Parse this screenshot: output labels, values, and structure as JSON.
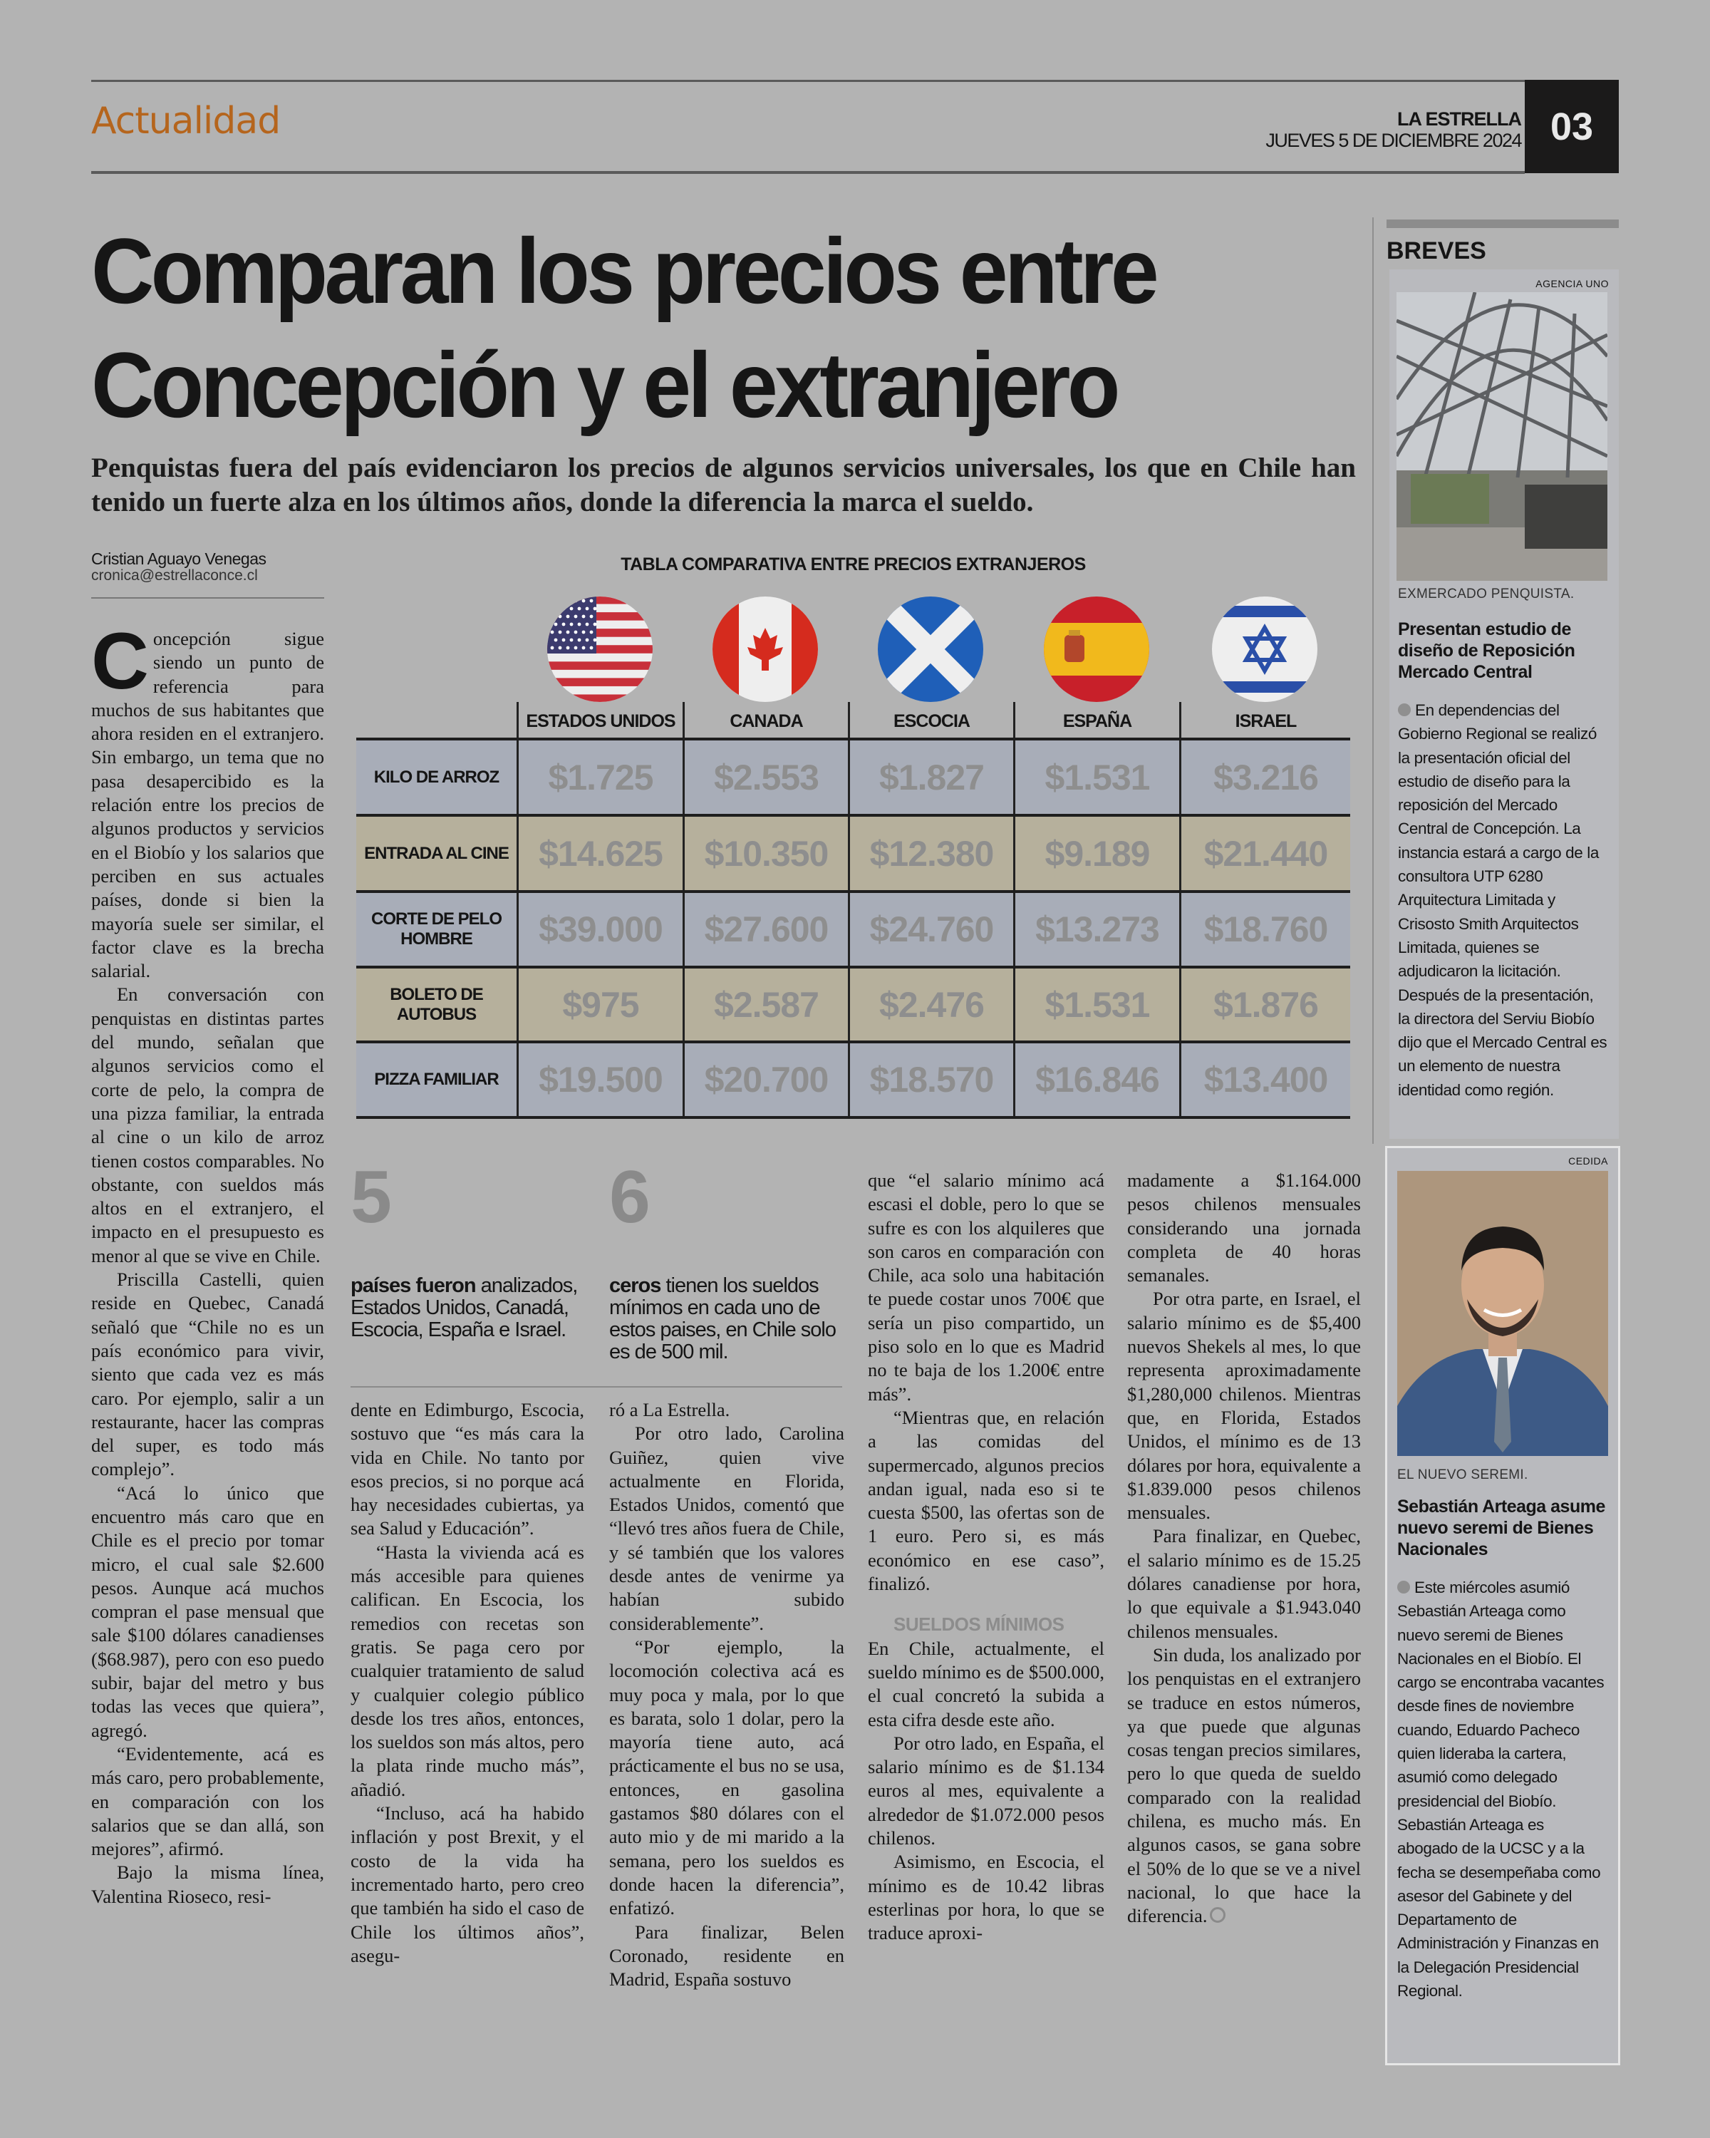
{
  "header": {
    "section": "Actualidad",
    "newspaper": "LA ESTRELLA",
    "date": "JUEVES 5 DE DICIEMBRE 2024",
    "page_number": "03"
  },
  "article": {
    "headline_line1": "Comparan los precios entre",
    "headline_line2": "Concepción y el extranjero",
    "dek": "Penquistas fuera del país evidenciaron los precios de algunos servicios universales, los que en Chile han tenido un fuerte alza en los últimos años, donde la diferencia la marca el sueldo.",
    "author": "Cristian Aguayo Venegas",
    "email": "cronica@estrellaconce.cl",
    "drop_cap": "C",
    "col1": [
      "oncepción sigue siendo un punto de referencia para muchos de sus habitantes que ahora residen en el extranjero. Sin embargo, un tema que no pasa desapercibido es la relación entre los precios de algunos productos y servicios en el Biobío y los salarios que perciben en sus actuales países, donde si bien la mayoría suele ser similar, el factor clave es la brecha salarial.",
      "En conversación con penquistas en distintas partes del mundo, señalan que algunos servicios como el corte de pelo, la compra de una pizza familiar, la entrada al cine o un kilo de arroz tienen costos comparables. No obstante, con sueldos más altos en el extranjero, el impacto en el presupuesto es menor al que se vive en Chile.",
      "Priscilla Castelli, quien reside en Quebec, Canadá señaló que “Chile no es un país económico para vivir, siento que cada vez es más caro. Por ejemplo, salir a un restaurante, hacer las compras del super, es todo más complejo”.",
      "“Acá lo único que encuentro más caro que en Chile es el precio por tomar micro, el cual sale $2.600 pesos. Aunque acá muchos compran el pase mensual que sale $100 dólares canadienses ($68.987), pero con eso puedo subir, bajar del metro y bus todas las veces que quiera”, agregó.",
      "“Evidentemente, acá es más caro, pero probablemente, en comparación con los salarios que se dan allá, son mejores”, afirmó.",
      "Bajo la misma línea, Valentina Rioseco, resi-"
    ],
    "col2": [
      "dente en Edimburgo, Escocia, sostuvo que “es más cara la vida en Chile. No tanto por esos precios, si no porque acá hay necesidades cubiertas, ya sea Salud y Educación”.",
      "“Hasta la vivienda acá es más accesible para quienes califican. En Escocia, los remedios con recetas son gratis. Se paga cero por cualquier tratamiento de salud y cualquier colegio público desde los tres años, entonces, los sueldos son más altos, pero la plata rinde mucho más”, añadió.",
      "“Incluso, acá ha habido inflación y post Brexit, y el costo de la vida ha incrementado harto, pero creo que también ha sido el caso de Chile los últimos años”, asegu-"
    ],
    "col3": [
      "ró a La Estrella.",
      "Por otro lado, Carolina Guiñez, quien vive actualmente en Florida, Estados Unidos, comentó que “llevó tres años fuera de Chile, y sé también que los valores desde antes de venirme ya habían subido considerablemente”.",
      "“Por ejemplo, la locomoción colectiva acá es muy poca y mala, por lo que es barata, solo 1 dolar, pero la mayoría tiene auto, acá prácticamente el bus no se usa, entonces, en gasolina gastamos $80 dólares con el auto mio y de mi marido a la semana, pero los sueldos es donde hacen la diferencia”, enfatizó.",
      "Para finalizar, Belen Coronado, residente en Madrid, España sostuvo"
    ],
    "col4a": [
      "que “el salario mínimo acá escasi el doble, pero lo que se sufre es con los alquileres que son caros en comparación con Chile, aca solo una habitación te puede costar unos 700€ que sería un piso compartido, un piso solo en lo que es Madrid no te baja de los 1.200€ entre más”.",
      "“Mientras que, en relación a las comidas del supermercado, algunos precios andan igual, nada eso si te cuesta $500, las ofertas son de 1 euro. Pero si, es más económico en ese caso”, finalizó."
    ],
    "subheading": "SUELDOS MÍNIMOS",
    "col4b": [
      "En Chile, actualmente, el sueldo mínimo es de $500.000, el cual concretó la subida a esta cifra desde este año.",
      "Por otro lado, en España, el salario mínimo es de $1.134 euros al mes, equivalente a alrededor de $1.072.000 pesos chilenos.",
      "Asimismo, en Escocia, el mínimo es de 10.42 libras esterlinas por hora, lo que se traduce aproxi-"
    ],
    "col5": [
      "madamente a $1.164.000 pesos chilenos mensuales considerando una jornada completa de 40 horas semanales.",
      "Por otra parte, en Israel, el salario mínimo es de $5,400 nuevos Shekels al mes, lo que representa aproximadamente $1,280,000 chilenos. Mientras que, en Florida, Estados Unidos, el mínimo es de 13 dólares por hora, equivalente a $1.839.000 pesos chilenos mensuales.",
      "Para finalizar, en Quebec, el salario mínimo es de 15.25 dólares canadiense por hora, lo que equivale a $1.943.040 chilenos mensuales.",
      "Sin duda, los analizado por los penquistas en el extranjero se traduce en estos números, ya que puede que algunas cosas tengan precios similares, pero lo que queda de sueldo comparado con la realidad chilena, es mucho más. En algunos casos, se gana sobre el 50% de lo que se ve a nivel nacional, lo que hace la diferencia."
    ],
    "end_mark_icon": "end-of-article-icon"
  },
  "stats": [
    {
      "number": "5",
      "bold": "países fueron",
      "text": " analizados, Estados Unidos, Canadá, Escocia, España e Israel."
    },
    {
      "number": "6",
      "bold": "ceros",
      "text": " tienen los sueldos mínimos en cada uno de estos paises, en Chile solo es de 500 mil."
    }
  ],
  "table": {
    "title": "TABLA COMPARATIVA ENTRE PRECIOS EXTRANJEROS",
    "columns": [
      {
        "label": "ESTADOS UNIDOS",
        "flag": "usa-flag-icon"
      },
      {
        "label": "CANADA",
        "flag": "canada-flag-icon"
      },
      {
        "label": "ESCOCIA",
        "flag": "scotland-flag-icon"
      },
      {
        "label": "ESPAÑA",
        "flag": "spain-flag-icon"
      },
      {
        "label": "ISRAEL",
        "flag": "israel-flag-icon"
      }
    ],
    "rows": [
      {
        "label": "KILO DE ARROZ",
        "values": [
          "$1.725",
          "$2.553",
          "$1.827",
          "$1.531",
          "$3.216"
        ]
      },
      {
        "label": "ENTRADA AL CINE",
        "values": [
          "$14.625",
          "$10.350",
          "$12.380",
          "$9.189",
          "$21.440"
        ]
      },
      {
        "label": "CORTE DE PELO HOMBRE",
        "values": [
          "$39.000",
          "$27.600",
          "$24.760",
          "$13.273",
          "$18.760"
        ]
      },
      {
        "label": "BOLETO DE AUTOBUS",
        "values": [
          "$975",
          "$2.587",
          "$2.476",
          "$1.531",
          "$1.876"
        ]
      },
      {
        "label": "PIZZA FAMILIAR",
        "values": [
          "$19.500",
          "$20.700",
          "$18.570",
          "$16.846",
          "$13.400"
        ]
      }
    ],
    "row_colors": [
      "#a8adb8",
      "#b6b09c"
    ]
  },
  "sidebar": {
    "title": "BREVES",
    "items": [
      {
        "credit": "AGENCIA UNO",
        "caption": "EXMERCADO PENQUISTA.",
        "headline": "Presentan estudio de diseño de Reposición Mercado Central",
        "body": "En dependencias del Gobierno Regional se realizó la presentación oficial del estudio de diseño para la reposición del Mercado Central de Concepción. La instancia estará a cargo de la consultora UTP 6280 Arquitectura Limitada y Crisosto Smith Arquitectos Limitada, quienes se adjudicaron la licitación. Después de la presentación, la directora del Serviu Biobío dijo que el Mercado Central es un elemento de nuestra identidad como región."
      },
      {
        "credit": "CEDIDA",
        "caption": "EL NUEVO SEREMI.",
        "headline": "Sebastián Arteaga asume nuevo seremi de Bienes Nacionales",
        "body": "Este miércoles asumió Sebastián Arteaga como nuevo seremi de Bienes Nacionales en el Biobío. El cargo se encontraba vacantes desde fines de noviembre cuando, Eduardo Pacheco quien lideraba la cartera, asumió como delegado presidencial del Biobío. Sebastián Arteaga es abogado de la UCSC y a la fecha se desempeñaba como asesor del Gabinete y del Departamento de Administración y Finanzas en la Delegación Presidencial Regional."
      }
    ]
  },
  "colors": {
    "section_accent": "#b5651d",
    "page_background": "#b3b3b3",
    "price_text": "#8e8e8e"
  }
}
